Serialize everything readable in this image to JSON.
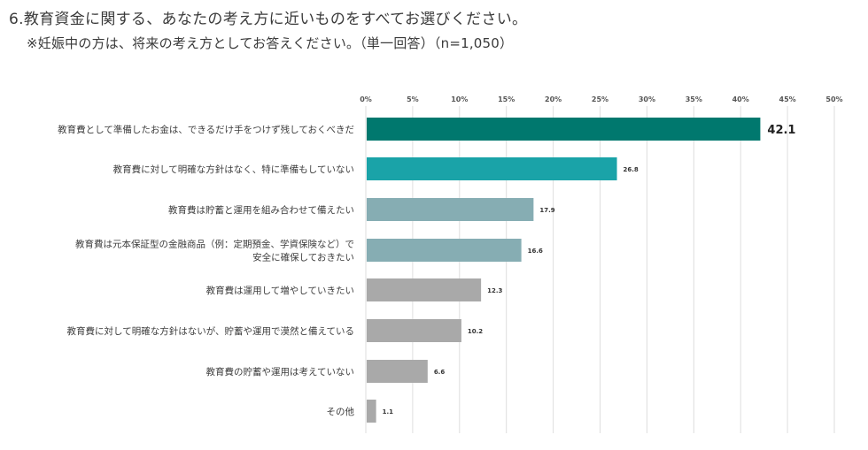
{
  "header": {
    "title": "6.教育資金に関する、あなたの考え方に近いものをすべてお選びください。",
    "subtitle": "※妊娠中の方は、将来の考え方としてお答えください。（単一回答）（n=1,050）"
  },
  "chart_data": {
    "type": "bar",
    "orientation": "horizontal",
    "xlim": [
      0,
      50
    ],
    "ticks": [
      "0%",
      "5%",
      "10%",
      "15%",
      "20%",
      "25%",
      "30%",
      "35%",
      "40%",
      "45%",
      "50%"
    ],
    "grid": true,
    "categories": [
      [
        "教育費として準備したお金は、できるだけ手をつけず残しておくべきだ"
      ],
      [
        "教育費に対して明確な方針はなく、特に準備もしていない"
      ],
      [
        "教育費は貯蓄と運用を組み合わせて備えたい"
      ],
      [
        "教育費は元本保証型の金融商品（例：定期預金、学資保険など）で",
        "安全に確保しておきたい"
      ],
      [
        "教育費は運用して増やしていきたい"
      ],
      [
        "教育費に対して明確な方針はないが、貯蓄や運用で漠然と備えている"
      ],
      [
        "教育費の貯蓄や運用は考えていない"
      ],
      [
        "その他"
      ]
    ],
    "values": [
      42.1,
      26.8,
      17.9,
      16.6,
      12.3,
      10.2,
      6.6,
      1.1
    ],
    "value_labels": [
      "42.1",
      "26.8",
      "17.9",
      "16.6",
      "12.3",
      "10.2",
      "6.6",
      "1.1"
    ],
    "colors": [
      "#00786e",
      "#1aa3a8",
      "#86adb3",
      "#86adb3",
      "#a9a9a9",
      "#a9a9a9",
      "#a9a9a9",
      "#a9a9a9"
    ],
    "highlight_index": 0
  }
}
